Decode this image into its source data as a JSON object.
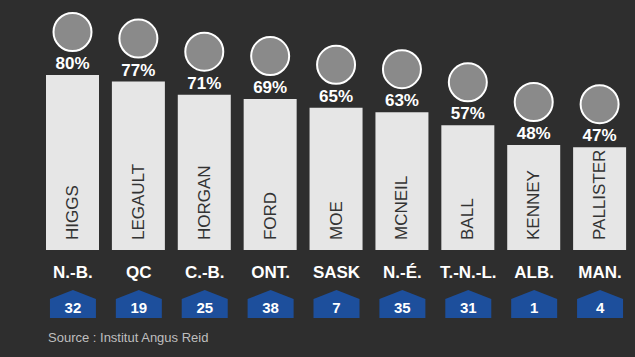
{
  "chart_data": {
    "type": "bar",
    "categories": [
      "N.-B.",
      "QC",
      "C.-B.",
      "ONT.",
      "SASK",
      "N.-É.",
      "T.-N.-L.",
      "ALB.",
      "MAN."
    ],
    "values": [
      80,
      77,
      71,
      69,
      65,
      63,
      57,
      48,
      47
    ],
    "value_labels": [
      "80%",
      "77%",
      "71%",
      "69%",
      "65%",
      "63%",
      "57%",
      "48%",
      "47%"
    ],
    "names": [
      "HIGGS",
      "LEGAULT",
      "HORGAN",
      "FORD",
      "MOE",
      "MCNEIL",
      "BALL",
      "KENNEY",
      "PALLISTER"
    ],
    "ranks": [
      32,
      19,
      25,
      38,
      7,
      35,
      31,
      1,
      4
    ],
    "source": "Source : Institut Angus Reid",
    "color": "#e6e6e6",
    "ylim": [
      0,
      80
    ],
    "data_labels": true,
    "tick_labels": "x",
    "grid": false
  }
}
